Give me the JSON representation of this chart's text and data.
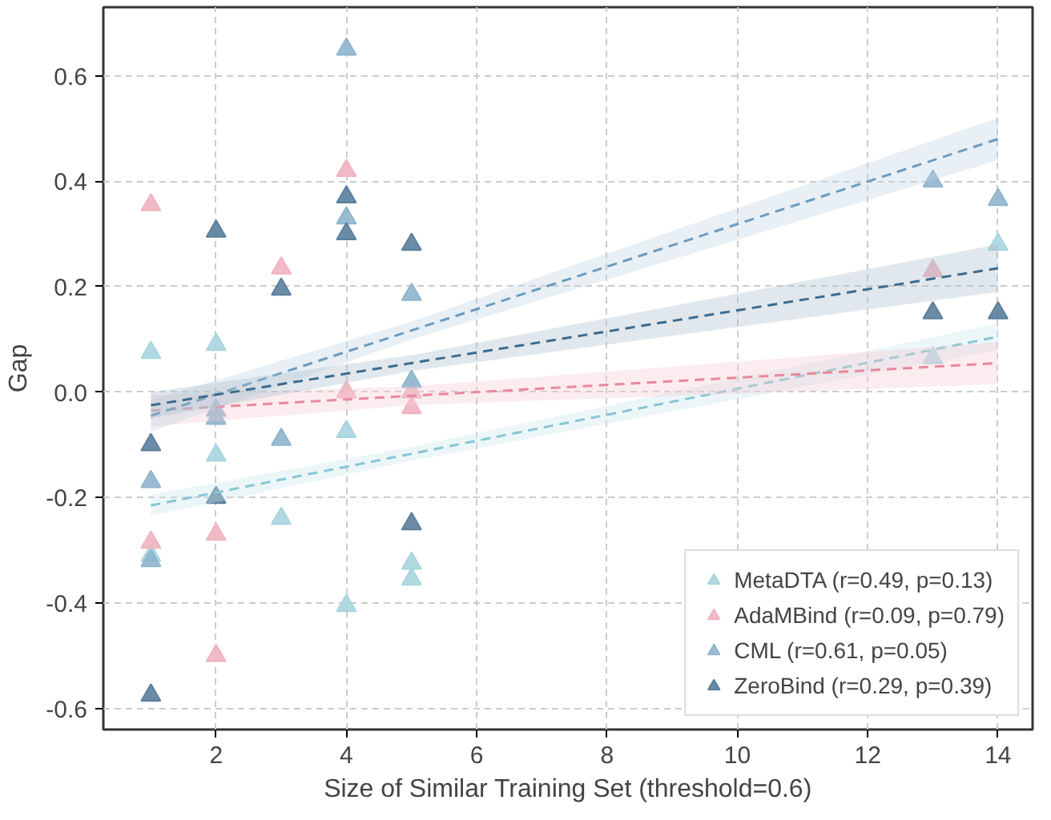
{
  "chart_data": {
    "type": "scatter",
    "xlabel": "Size of Similar Training Set (threshold=0.6)",
    "ylabel": "Gap",
    "xlim": [
      0.27,
      14.53
    ],
    "ylim": [
      -0.64,
      0.73
    ],
    "xticks": [
      2,
      4,
      6,
      8,
      10,
      12,
      14
    ],
    "yticks": [
      {
        "value": -0.6,
        "label": "-0.6"
      },
      {
        "value": -0.4,
        "label": "-0.4"
      },
      {
        "value": -0.2,
        "label": "-0.2"
      },
      {
        "value": 0,
        "label": "0.0"
      },
      {
        "value": 0.2,
        "label": "0.2"
      },
      {
        "value": 0.4,
        "label": "0.4"
      },
      {
        "value": 0.6,
        "label": "0.6"
      }
    ],
    "grid": true,
    "legend": "bottom right",
    "marker": "triangle",
    "series": [
      {
        "name": "MetaDTA (r=0.49, p=0.13)",
        "color": "#a8d5de",
        "x": [
          1,
          1,
          2,
          2,
          3,
          4,
          4,
          5,
          5,
          13,
          14
        ],
        "values": [
          0.075,
          -0.31,
          0.09,
          -0.12,
          -0.24,
          -0.075,
          -0.405,
          -0.325,
          -0.355,
          0.065,
          0.28
        ]
      },
      {
        "name": "AdaMBind (r=0.09, p=0.79)",
        "color": "#f0b4c0",
        "x": [
          1,
          1,
          2,
          2,
          3,
          4,
          4,
          5,
          5,
          13
        ],
        "values": [
          0.355,
          -0.285,
          -0.27,
          -0.5,
          0.235,
          0.42,
          0.0,
          0.0,
          -0.03,
          0.23
        ]
      },
      {
        "name": "CML (r=0.61, p=0.05)",
        "color": "#8fb5cd",
        "x": [
          1,
          1,
          2,
          2,
          3,
          4,
          4,
          5,
          5,
          13,
          14
        ],
        "values": [
          -0.17,
          -0.32,
          -0.035,
          -0.05,
          -0.09,
          0.65,
          0.33,
          0.185,
          0.02,
          0.4,
          0.365
        ]
      },
      {
        "name": "ZeroBind (r=0.29, p=0.39)",
        "color": "#5b7f9d",
        "x": [
          1,
          1,
          2,
          2,
          3,
          4,
          4,
          5,
          5,
          13,
          14
        ],
        "values": [
          -0.1,
          -0.575,
          0.305,
          -0.2,
          0.195,
          0.37,
          0.3,
          0.28,
          -0.25,
          0.15,
          0.15
        ]
      },
      {
        "type": "line",
        "marker": "none",
        "line_style": "dashed",
        "color": "#88c6d4",
        "x": [
          1,
          5,
          14
        ],
        "values": [
          -0.215,
          -0.117,
          0.105
        ],
        "lower": [
          -0.235,
          -0.13,
          0.08
        ],
        "upper": [
          -0.195,
          -0.104,
          0.13
        ]
      },
      {
        "type": "line",
        "marker": "none",
        "line_style": "dashed",
        "color": "#e8899b",
        "x": [
          1,
          5,
          14
        ],
        "values": [
          -0.035,
          -0.007,
          0.055
        ],
        "lower": [
          -0.065,
          -0.025,
          0.015
        ],
        "upper": [
          -0.005,
          0.011,
          0.095
        ]
      },
      {
        "type": "line",
        "marker": "none",
        "line_style": "dashed",
        "color": "#6b9cbf",
        "x": [
          1,
          5,
          14
        ],
        "values": [
          -0.045,
          0.117,
          0.48
        ],
        "lower": [
          -0.075,
          0.1,
          0.44
        ],
        "upper": [
          -0.015,
          0.134,
          0.52
        ]
      },
      {
        "type": "line",
        "marker": "none",
        "line_style": "dashed",
        "color": "#3e6b8d",
        "x": [
          1,
          5,
          14
        ],
        "values": [
          -0.025,
          0.055,
          0.235
        ],
        "lower": [
          -0.05,
          0.04,
          0.19
        ],
        "upper": [
          0.0,
          0.07,
          0.28
        ]
      }
    ]
  }
}
